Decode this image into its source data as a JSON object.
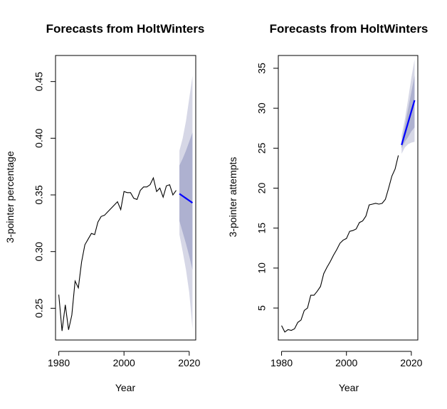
{
  "chart_data": [
    {
      "type": "line",
      "title": "Forecasts from HoltWinters",
      "xlabel": "Year",
      "ylabel": "3-pointer percentage",
      "xlim": [
        1979,
        2022
      ],
      "ylim": [
        0.222,
        0.473
      ],
      "xticks": [
        1980,
        2000,
        2020
      ],
      "yticks": [
        0.25,
        0.3,
        0.35,
        0.4,
        0.45
      ],
      "ytick_labels": [
        "0.25",
        "0.30",
        "0.35",
        "0.40",
        "0.45"
      ],
      "grid": false,
      "series": [
        {
          "role": "observed",
          "color": "#000000",
          "x": [
            1980,
            1981,
            1982,
            1983,
            1984,
            1985,
            1986,
            1987,
            1988,
            1989,
            1990,
            1991,
            1992,
            1993,
            1994,
            1995,
            1996,
            1997,
            1998,
            1999,
            2000,
            2001,
            2002,
            2003,
            2004,
            2005,
            2006,
            2007,
            2008,
            2009,
            2010,
            2011,
            2012,
            2013,
            2014,
            2015,
            2016
          ],
          "y": [
            0.262,
            0.23,
            0.253,
            0.231,
            0.244,
            0.274,
            0.268,
            0.291,
            0.306,
            0.311,
            0.316,
            0.315,
            0.326,
            0.331,
            0.332,
            0.335,
            0.338,
            0.341,
            0.344,
            0.337,
            0.353,
            0.352,
            0.352,
            0.347,
            0.346,
            0.354,
            0.357,
            0.357,
            0.359,
            0.365,
            0.353,
            0.356,
            0.348,
            0.358,
            0.359,
            0.35,
            0.354
          ]
        },
        {
          "role": "forecast",
          "color": "#0000ff",
          "x": [
            2017,
            2018,
            2019,
            2020,
            2021
          ],
          "y": [
            0.351,
            0.349,
            0.347,
            0.345,
            0.343
          ],
          "lo80": [
            0.327,
            0.317,
            0.307,
            0.296,
            0.284
          ],
          "hi80": [
            0.376,
            0.382,
            0.389,
            0.397,
            0.405
          ],
          "lo95": [
            0.315,
            0.3,
            0.284,
            0.264,
            0.232
          ],
          "hi95": [
            0.389,
            0.4,
            0.415,
            0.435,
            0.455
          ]
        }
      ],
      "band_colors": {
        "band95": "#d6d7e6",
        "band80": "#aeb1d0"
      }
    },
    {
      "type": "line",
      "title": "Forecasts from HoltWinters",
      "xlabel": "Year",
      "ylabel": "3-pointer attempts",
      "xlim": [
        1979,
        2022
      ],
      "ylim": [
        1.0,
        36.6
      ],
      "xticks": [
        1980,
        2000,
        2020
      ],
      "yticks": [
        5,
        10,
        15,
        20,
        25,
        30,
        35
      ],
      "ytick_labels": [
        "5",
        "10",
        "15",
        "20",
        "25",
        "30",
        "35"
      ],
      "grid": false,
      "series": [
        {
          "role": "observed",
          "color": "#000000",
          "x": [
            1980,
            1981,
            1982,
            1983,
            1984,
            1985,
            1986,
            1987,
            1988,
            1989,
            1990,
            1991,
            1992,
            1993,
            1994,
            1995,
            1996,
            1997,
            1998,
            1999,
            2000,
            2001,
            2002,
            2003,
            2004,
            2005,
            2006,
            2007,
            2008,
            2009,
            2010,
            2011,
            2012,
            2013,
            2014,
            2015,
            2016
          ],
          "y": [
            2.8,
            2.0,
            2.3,
            2.2,
            2.4,
            3.2,
            3.5,
            4.7,
            5.0,
            6.6,
            6.6,
            7.1,
            7.7,
            9.3,
            10.1,
            10.8,
            11.6,
            12.3,
            13.1,
            13.5,
            13.7,
            14.6,
            14.7,
            14.9,
            15.7,
            15.9,
            16.5,
            17.9,
            18.0,
            18.1,
            18.0,
            18.1,
            18.6,
            20.0,
            21.5,
            22.4,
            24.1
          ]
        },
        {
          "role": "forecast",
          "color": "#0000ff",
          "x": [
            2017,
            2018,
            2019,
            2020,
            2021
          ],
          "y": [
            25.4,
            26.8,
            28.2,
            29.6,
            31.0
          ],
          "lo80": [
            25.0,
            25.8,
            26.4,
            27.1,
            27.6
          ],
          "hi80": [
            25.8,
            27.8,
            29.9,
            32.0,
            34.1
          ],
          "lo95": [
            24.3,
            25.1,
            25.5,
            25.7,
            25.8
          ],
          "hi95": [
            26.6,
            28.6,
            31.1,
            33.8,
            36.1
          ]
        }
      ],
      "band_colors": {
        "band95": "#d6d7e6",
        "band80": "#aeb1d0"
      }
    }
  ]
}
